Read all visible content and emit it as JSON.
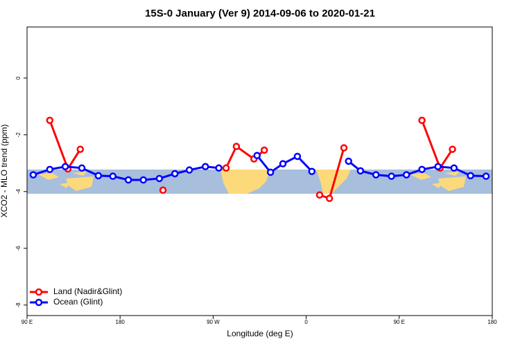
{
  "chart_data": {
    "type": "line",
    "title": "15S-0 January (Ver 9)   2014-09-06 to 2020-01-21",
    "x_label": "Longitude (deg E)",
    "y_label": "XCO2 - MLO trend (ppm)",
    "xlim": [
      90,
      540
    ],
    "ylim": [
      -8.37,
      1.8
    ],
    "xticks": [
      {
        "value": 90,
        "label": "90 E"
      },
      180,
      {
        "value": 270,
        "label": "90 W"
      },
      {
        "value": 360,
        "label": "0"
      },
      {
        "value": 450,
        "label": "90 E"
      },
      {
        "value": 540,
        "label": "180"
      }
    ],
    "yticks": [
      0,
      -2,
      -4,
      -6,
      -8
    ],
    "legend": "bottom-left",
    "series": [
      {
        "name": "Land (Nadir&Glint)",
        "color": "#ff0000",
        "x": [
          112,
          129.5,
          141.5,
          null,
          221.5,
          null,
          282.5,
          292.5,
          309.5,
          319.5,
          null,
          373,
          382.5,
          396.5,
          null,
          472,
          489.5,
          501.5
        ],
        "values": [
          -1.49,
          -3.2,
          -2.51,
          null,
          -3.95,
          null,
          -3.17,
          -2.41,
          -2.85,
          -2.54,
          null,
          -4.12,
          -4.24,
          -2.46,
          null,
          -1.49,
          -3.17,
          -2.51
        ]
      },
      {
        "name": "Ocean (Glint)",
        "color": "#0000ff",
        "x": [
          96,
          112,
          127,
          143,
          159,
          173,
          188,
          202.5,
          218,
          233,
          247,
          262.5,
          275.5,
          null,
          312.5,
          325.5,
          337.5,
          351.5,
          365.5,
          null,
          401,
          412.5,
          427.5,
          442.5,
          457,
          472,
          487.5,
          503,
          519,
          534
        ],
        "values": [
          -3.41,
          -3.22,
          -3.12,
          -3.17,
          -3.44,
          -3.46,
          -3.59,
          -3.59,
          -3.54,
          -3.37,
          -3.24,
          -3.12,
          -3.17,
          null,
          -2.73,
          -3.32,
          -3.02,
          -2.76,
          -3.29,
          null,
          -2.93,
          -3.27,
          -3.41,
          -3.46,
          -3.41,
          -3.22,
          -3.12,
          -3.17,
          -3.44,
          -3.46
        ]
      }
    ]
  }
}
